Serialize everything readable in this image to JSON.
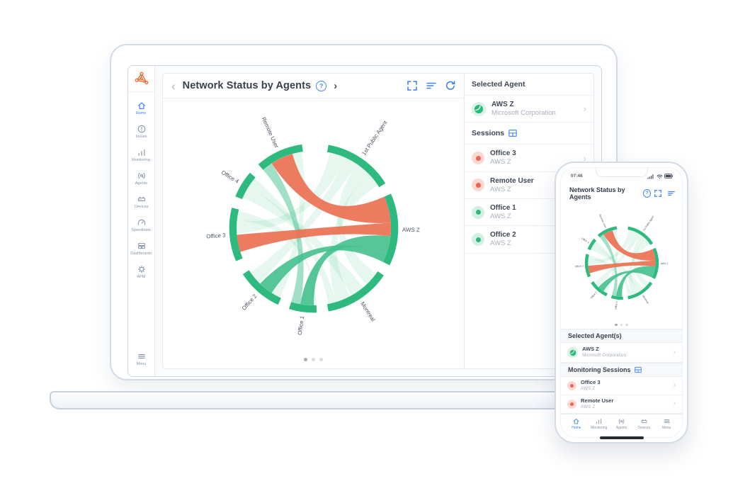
{
  "colors": {
    "accent_blue": "#3f80f2",
    "brand_orange": "#f2692f",
    "ring_green": "#2eba7e",
    "ribbon_green": "#44c08e",
    "ribbon_red": "#ec7153",
    "status_red": "#ee6352",
    "status_green": "#2eb87c",
    "text_dark": "#39414f",
    "text_gray": "#a8b0bc"
  },
  "icons": {
    "help": "?",
    "back_chevron": "‹",
    "forward_chevron": "›",
    "row_chevron": "›"
  },
  "laptop": {
    "sidebar": {
      "logo_name": "auvik-network-logo",
      "items": [
        {
          "label": "Home",
          "icon": "home",
          "active": true
        },
        {
          "label": "Issues",
          "icon": "issues",
          "active": false
        },
        {
          "label": "Monitoring",
          "icon": "monitoring",
          "active": false
        },
        {
          "label": "Agents",
          "icon": "agents",
          "active": false
        },
        {
          "label": "Devices",
          "icon": "devices",
          "active": false
        },
        {
          "label": "Speedtests",
          "icon": "speedtests",
          "active": false
        },
        {
          "label": "Dashboards",
          "icon": "dashboards",
          "active": false
        },
        {
          "label": "APM",
          "icon": "apm",
          "active": false
        }
      ],
      "menu": {
        "label": "Menu",
        "icon": "menu"
      }
    },
    "header": {
      "title": "Network Status by Agents"
    },
    "panel": {
      "selected_agent_title": "Selected Agent",
      "agent": {
        "name": "AWS Z",
        "company": "Microsoft Corporation"
      },
      "sessions_title": "Sessions",
      "sessions": [
        {
          "name": "Office 3",
          "agent": "AWS Z",
          "status": "red"
        },
        {
          "name": "Remote User",
          "agent": "AWS Z",
          "status": "red"
        },
        {
          "name": "Office 1",
          "agent": "AWS Z",
          "status": "green"
        },
        {
          "name": "Office 2",
          "agent": "AWS Z",
          "status": "green"
        }
      ]
    },
    "pagination": {
      "dots": 3,
      "active_index": 0
    }
  },
  "phone": {
    "status_bar": {
      "time": "07:46"
    },
    "header": {
      "title": "Network Status by Agents"
    },
    "selected_agents_title": "Selected Agent(s)",
    "agent": {
      "name": "AWS Z",
      "company": "Microsoft Corporation"
    },
    "monitoring_sessions_title": "Monitoring Sessions",
    "sessions": [
      {
        "name": "Office 3",
        "agent": "AWS Z",
        "status": "red"
      },
      {
        "name": "Remote User",
        "agent": "AWS Z",
        "status": "red"
      }
    ],
    "pagination": {
      "dots": 3,
      "active_index": 0
    },
    "nav": [
      {
        "label": "Home",
        "icon": "home",
        "active": true
      },
      {
        "label": "Monitoring",
        "icon": "monitoring",
        "active": false
      },
      {
        "label": "Agents",
        "icon": "agents",
        "active": false
      },
      {
        "label": "Devices",
        "icon": "devices",
        "active": false
      },
      {
        "label": "Menu",
        "icon": "menu",
        "active": false
      }
    ]
  },
  "chart_data": {
    "type": "chord",
    "title": "Network Status by Agents",
    "nodes": [
      {
        "name": "1st Public Agent",
        "start": 10,
        "end": 58
      },
      {
        "name": "AWS Z",
        "start": 66,
        "end": 116
      },
      {
        "name": "Montreal",
        "start": 124,
        "end": 170
      },
      {
        "name": "Office 1",
        "start": 178,
        "end": 197
      },
      {
        "name": "Office 2",
        "start": 205,
        "end": 237
      },
      {
        "name": "Office 3",
        "start": 247,
        "end": 284
      },
      {
        "name": "Office 4",
        "start": 292,
        "end": 311
      },
      {
        "name": "Remote User",
        "start": 319,
        "end": 352
      }
    ],
    "ribbons": [
      {
        "type": "pale",
        "from": "1st Public Agent",
        "to": "Office 3",
        "f": [
          12,
          24
        ],
        "t": [
          266,
          276
        ]
      },
      {
        "type": "pale",
        "from": "1st Public Agent",
        "to": "Office 2",
        "f": [
          24,
          34
        ],
        "t": [
          225,
          235
        ]
      },
      {
        "type": "pale",
        "from": "1st Public Agent",
        "to": "Montreal",
        "f": [
          34,
          45
        ],
        "t": [
          126,
          137
        ]
      },
      {
        "type": "pale",
        "from": "1st Public Agent",
        "to": "Montreal",
        "f": [
          45,
          56
        ],
        "t": [
          152,
          163
        ]
      },
      {
        "type": "pale",
        "from": "Office 4",
        "to": "Montreal",
        "f": [
          293,
          303
        ],
        "t": [
          140,
          151
        ]
      },
      {
        "type": "pale",
        "from": "Office 4",
        "to": "Montreal",
        "f": [
          303,
          310
        ],
        "t": [
          163,
          169
        ]
      },
      {
        "type": "pale",
        "from": "Remote User",
        "to": "Office 2",
        "f": [
          344,
          351
        ],
        "t": [
          206,
          213
        ]
      },
      {
        "type": "pale",
        "from": "Office 3",
        "to": "Office 1",
        "f": [
          276,
          283
        ],
        "t": [
          178,
          180
        ]
      },
      {
        "type": "medium",
        "from": "Remote User",
        "to": "Office 1",
        "f": [
          319,
          327
        ],
        "t": [
          190,
          197
        ]
      },
      {
        "type": "green",
        "from": "AWS Z",
        "to": "Office 1",
        "f": [
          96,
          109
        ],
        "t": [
          180,
          190
        ]
      },
      {
        "type": "green",
        "from": "AWS Z",
        "to": "Office 2",
        "f": [
          109,
          116
        ],
        "t": [
          213,
          224
        ]
      },
      {
        "type": "red",
        "from": "Remote User",
        "to": "AWS Z",
        "f": [
          327,
          344
        ],
        "t": [
          66,
          86
        ]
      },
      {
        "type": "red",
        "from": "Office 3",
        "to": "AWS Z",
        "f": [
          252,
          265
        ],
        "t": [
          86,
          96
        ]
      }
    ],
    "styles": {
      "arc": {
        "fill": "#2eba7e",
        "opacity": 1
      },
      "red": {
        "fill": "#ec7153",
        "opacity": 0.93
      },
      "green": {
        "fill": "#44c08e",
        "opacity": 0.9
      },
      "medium": {
        "fill": "#44c08e",
        "opacity": 0.5
      },
      "pale": {
        "fill": "#2eba7e",
        "opacity": 0.12
      }
    },
    "label_color": "#49525f"
  }
}
